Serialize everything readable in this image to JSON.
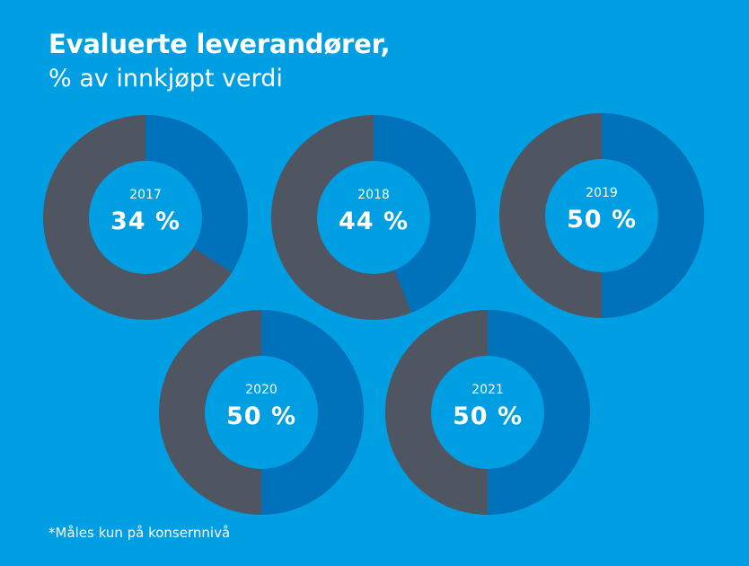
{
  "title": "Evaluerte leverandører,",
  "subtitle": "% av innkjøpt verdi",
  "footnote": "*Måles kun på konsernnivå",
  "colors": {
    "background": "#009ee3",
    "evaluated": "#0072bc",
    "remainder": "#4f5561",
    "center": "#009ee3"
  },
  "chart_data": {
    "type": "pie",
    "charts": [
      {
        "year": "2017",
        "label": "34 %",
        "value": 34
      },
      {
        "year": "2018",
        "label": "44 %",
        "value": 44
      },
      {
        "year": "2019",
        "label": "50 %",
        "value": 50
      },
      {
        "year": "2020",
        "label": "50 %",
        "value": 50
      },
      {
        "year": "2021",
        "label": "50 %",
        "value": 50
      }
    ]
  }
}
